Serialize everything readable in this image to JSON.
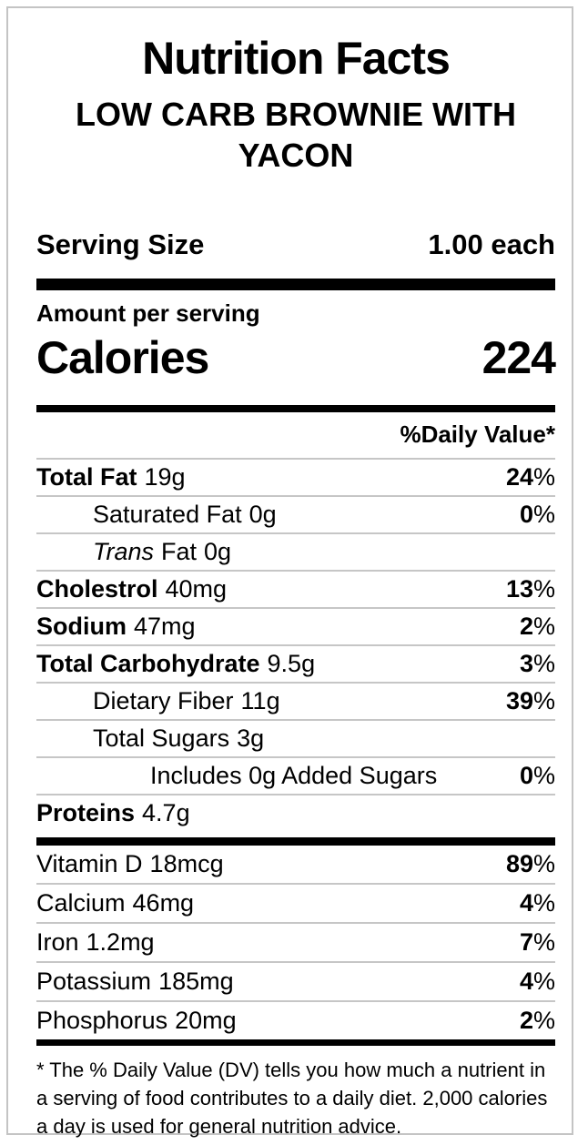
{
  "header": {
    "title": "Nutrition Facts",
    "product_name": "LOW CARB BROWNIE WITH YACON"
  },
  "serving": {
    "label": "Serving Size",
    "value": "1.00 each"
  },
  "calories_section": {
    "amount_per_serving_label": "Amount per serving",
    "calories_label": "Calories",
    "calories_value": "224"
  },
  "daily_value_header": "%Daily Value*",
  "nutrients": [
    {
      "name": "Total Fat",
      "amount": "19g",
      "dv": "24",
      "pct": "%"
    },
    {
      "name": "Saturated Fat",
      "amount": "0g",
      "dv": "0",
      "pct": "%"
    },
    {
      "name_italic": "Trans",
      "name": "Fat",
      "amount": "0g"
    },
    {
      "name": "Cholestrol",
      "amount": "40mg",
      "dv": "13",
      "pct": "%"
    },
    {
      "name": "Sodium",
      "amount": "47mg",
      "dv": "2",
      "pct": "%"
    },
    {
      "name": "Total Carbohydrate",
      "amount": "9.5g",
      "dv": "3",
      "pct": "%"
    },
    {
      "name": "Dietary Fiber",
      "amount": "11g",
      "dv": "39",
      "pct": "%"
    },
    {
      "name": "Total Sugars",
      "amount": "3g"
    },
    {
      "name": "Includes 0g Added Sugars",
      "amount": "",
      "dv": "0",
      "pct": "%"
    },
    {
      "name": "Proteins",
      "amount": "4.7g"
    }
  ],
  "vitamins": [
    {
      "name": "Vitamin D",
      "amount": "18mcg",
      "dv": "89",
      "pct": "%"
    },
    {
      "name": "Calcium",
      "amount": "46mg",
      "dv": "4",
      "pct": "%"
    },
    {
      "name": "Iron",
      "amount": "1.2mg",
      "dv": "7",
      "pct": "%"
    },
    {
      "name": "Potassium",
      "amount": "185mg",
      "dv": "4",
      "pct": "%"
    },
    {
      "name": "Phosphorus",
      "amount": "20mg",
      "dv": "2",
      "pct": "%"
    }
  ],
  "footnote": "* The % Daily Value (DV) tells you how much a nutrient in a serving of food contributes to a daily diet. 2,000 calories a day is used for general nutrition advice.",
  "colors": {
    "text": "#000000",
    "thick_rule": "#000000",
    "separator": "#c6c6c6",
    "panel_border": "#c4c4c4",
    "background": "#ffffff"
  }
}
